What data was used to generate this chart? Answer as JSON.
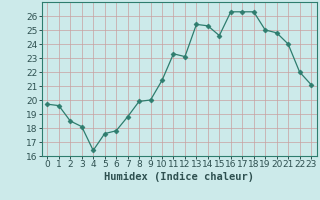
{
  "x": [
    0,
    1,
    2,
    3,
    4,
    5,
    6,
    7,
    8,
    9,
    10,
    11,
    12,
    13,
    14,
    15,
    16,
    17,
    18,
    19,
    20,
    21,
    22,
    23
  ],
  "y": [
    19.7,
    19.6,
    18.5,
    18.1,
    16.4,
    17.6,
    17.8,
    18.8,
    19.9,
    20.0,
    21.4,
    23.3,
    23.1,
    25.4,
    25.3,
    24.6,
    26.3,
    26.3,
    26.3,
    25.0,
    24.8,
    24.0,
    22.0,
    21.1
  ],
  "line_color": "#2e7d6e",
  "marker": "D",
  "marker_size": 2.5,
  "bg_color": "#cceaea",
  "grid_color": "#aacaca",
  "xlabel": "Humidex (Indice chaleur)",
  "ylim": [
    16,
    27
  ],
  "xlim": [
    -0.5,
    23.5
  ],
  "yticks": [
    16,
    17,
    18,
    19,
    20,
    21,
    22,
    23,
    24,
    25,
    26
  ],
  "xticks": [
    0,
    1,
    2,
    3,
    4,
    5,
    6,
    7,
    8,
    9,
    10,
    11,
    12,
    13,
    14,
    15,
    16,
    17,
    18,
    19,
    20,
    21,
    22,
    23
  ],
  "tick_fontsize": 6.5,
  "label_fontsize": 7.5
}
